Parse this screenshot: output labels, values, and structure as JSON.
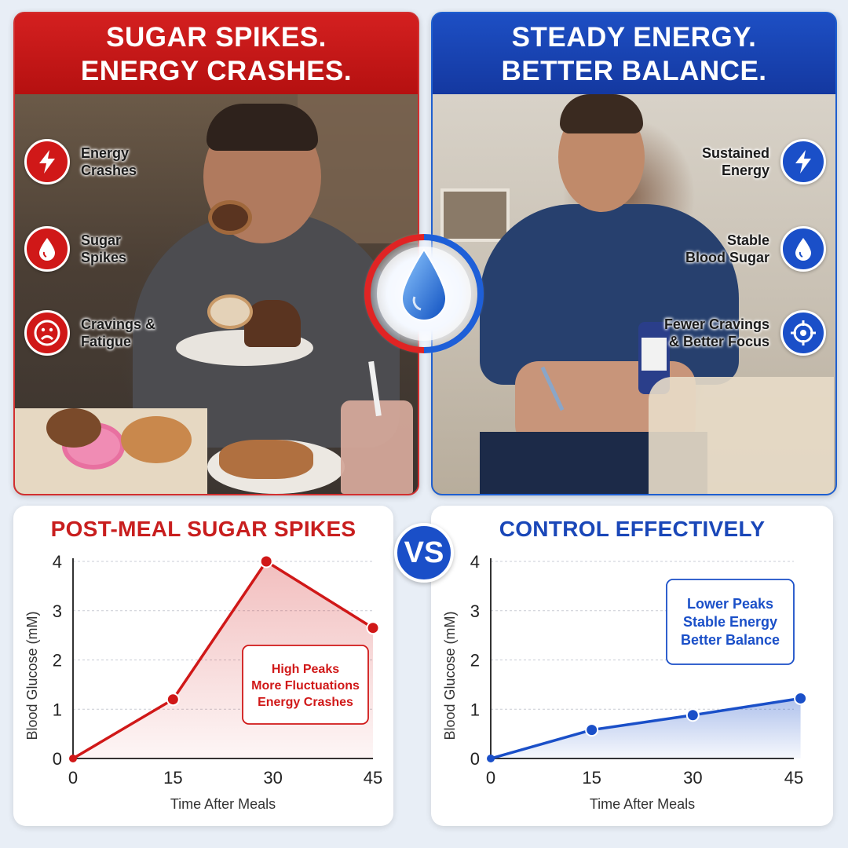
{
  "left_panel": {
    "header_line1": "SUGAR SPIKES.",
    "header_line2": "ENERGY CRASHES.",
    "features": [
      {
        "line1": "Energy",
        "line2": "Crashes",
        "icon": "lightning-icon"
      },
      {
        "line1": "Sugar",
        "line2": "Spikes",
        "icon": "drop-icon"
      },
      {
        "line1": "Cravings &",
        "line2": "Fatigue",
        "icon": "sad-face-icon"
      }
    ]
  },
  "right_panel": {
    "header_line1": "STEADY ENERGY.",
    "header_line2": "BETTER BALANCE.",
    "features": [
      {
        "line1": "Sustained",
        "line2": "Energy",
        "icon": "lightning-icon"
      },
      {
        "line1": "Stable",
        "line2": "Blood Sugar",
        "icon": "drop-icon"
      },
      {
        "line1": "Fewer Cravings",
        "line2": "& Better Focus",
        "icon": "target-icon"
      }
    ]
  },
  "vs_label": "VS",
  "colors": {
    "red": "#d01818",
    "blue": "#1a4fc8"
  },
  "chart_data": [
    {
      "type": "area",
      "title": "POST-MEAL SUGAR SPIKES",
      "xlabel": "Time After Meals",
      "ylabel": "Blood Glucose (mM)",
      "x": [
        0,
        15,
        29,
        45
      ],
      "x_ticks": [
        0,
        15,
        30,
        45
      ],
      "y_ticks": [
        0,
        1,
        2,
        3,
        4
      ],
      "values": [
        0,
        1.2,
        4.0,
        2.65
      ],
      "xlim": [
        0,
        45
      ],
      "ylim": [
        0,
        4
      ],
      "grid": true,
      "color": "#d01818",
      "annotation": [
        "High Peaks",
        "More Fluctuations",
        "Energy Crashes"
      ]
    },
    {
      "type": "area",
      "title": "CONTROL EFFECTIVELY",
      "xlabel": "Time After Meals",
      "ylabel": "Blood Glucose (mM)",
      "x": [
        0,
        15,
        30,
        46
      ],
      "x_ticks": [
        0,
        15,
        30,
        45
      ],
      "y_ticks": [
        0,
        1,
        2,
        3,
        4
      ],
      "values": [
        0,
        0.58,
        0.88,
        1.22
      ],
      "xlim": [
        0,
        45
      ],
      "ylim": [
        0,
        4
      ],
      "grid": true,
      "color": "#1a4fc8",
      "annotation": [
        "Lower Peaks",
        "Stable Energy",
        "Better Balance"
      ]
    }
  ]
}
